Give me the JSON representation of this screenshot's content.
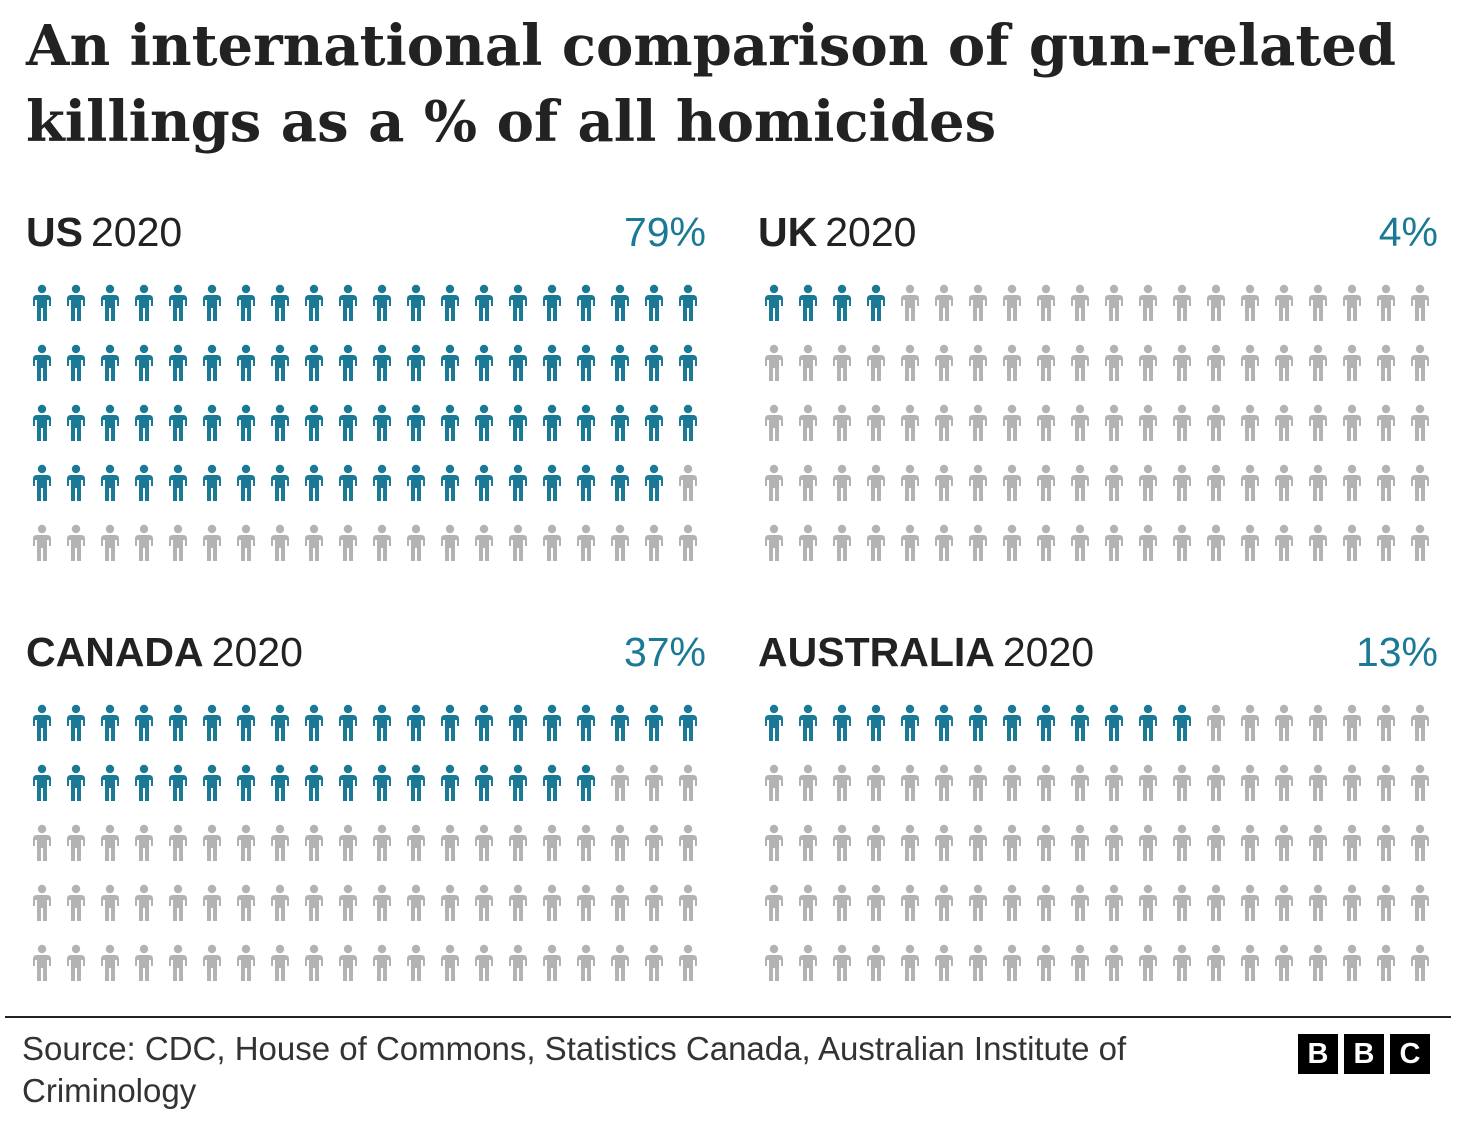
{
  "title": "An international comparison of gun-related killings as a % of all homicides",
  "colors": {
    "highlight": "#1a7a96",
    "rest": "#b3b3b3",
    "text": "#222222"
  },
  "chart_data": {
    "type": "pictogram",
    "icons_per_panel": 100,
    "grid_rows": 5,
    "grid_columns": 20,
    "icon": "person-icon",
    "panels": [
      {
        "country": "US",
        "year": "2020",
        "value": 79,
        "value_label": "79%"
      },
      {
        "country": "UK",
        "year": "2020",
        "value": 4,
        "value_label": "4%"
      },
      {
        "country": "CANADA",
        "year": "2020",
        "value": 37,
        "value_label": "37%"
      },
      {
        "country": "AUSTRALIA",
        "year": "2020",
        "value": 13,
        "value_label": "13%"
      }
    ]
  },
  "footer": {
    "source": "Source: CDC, House of Commons, Statistics Canada, Australian Institute of Criminology",
    "logo_letters": [
      "B",
      "B",
      "C"
    ]
  }
}
